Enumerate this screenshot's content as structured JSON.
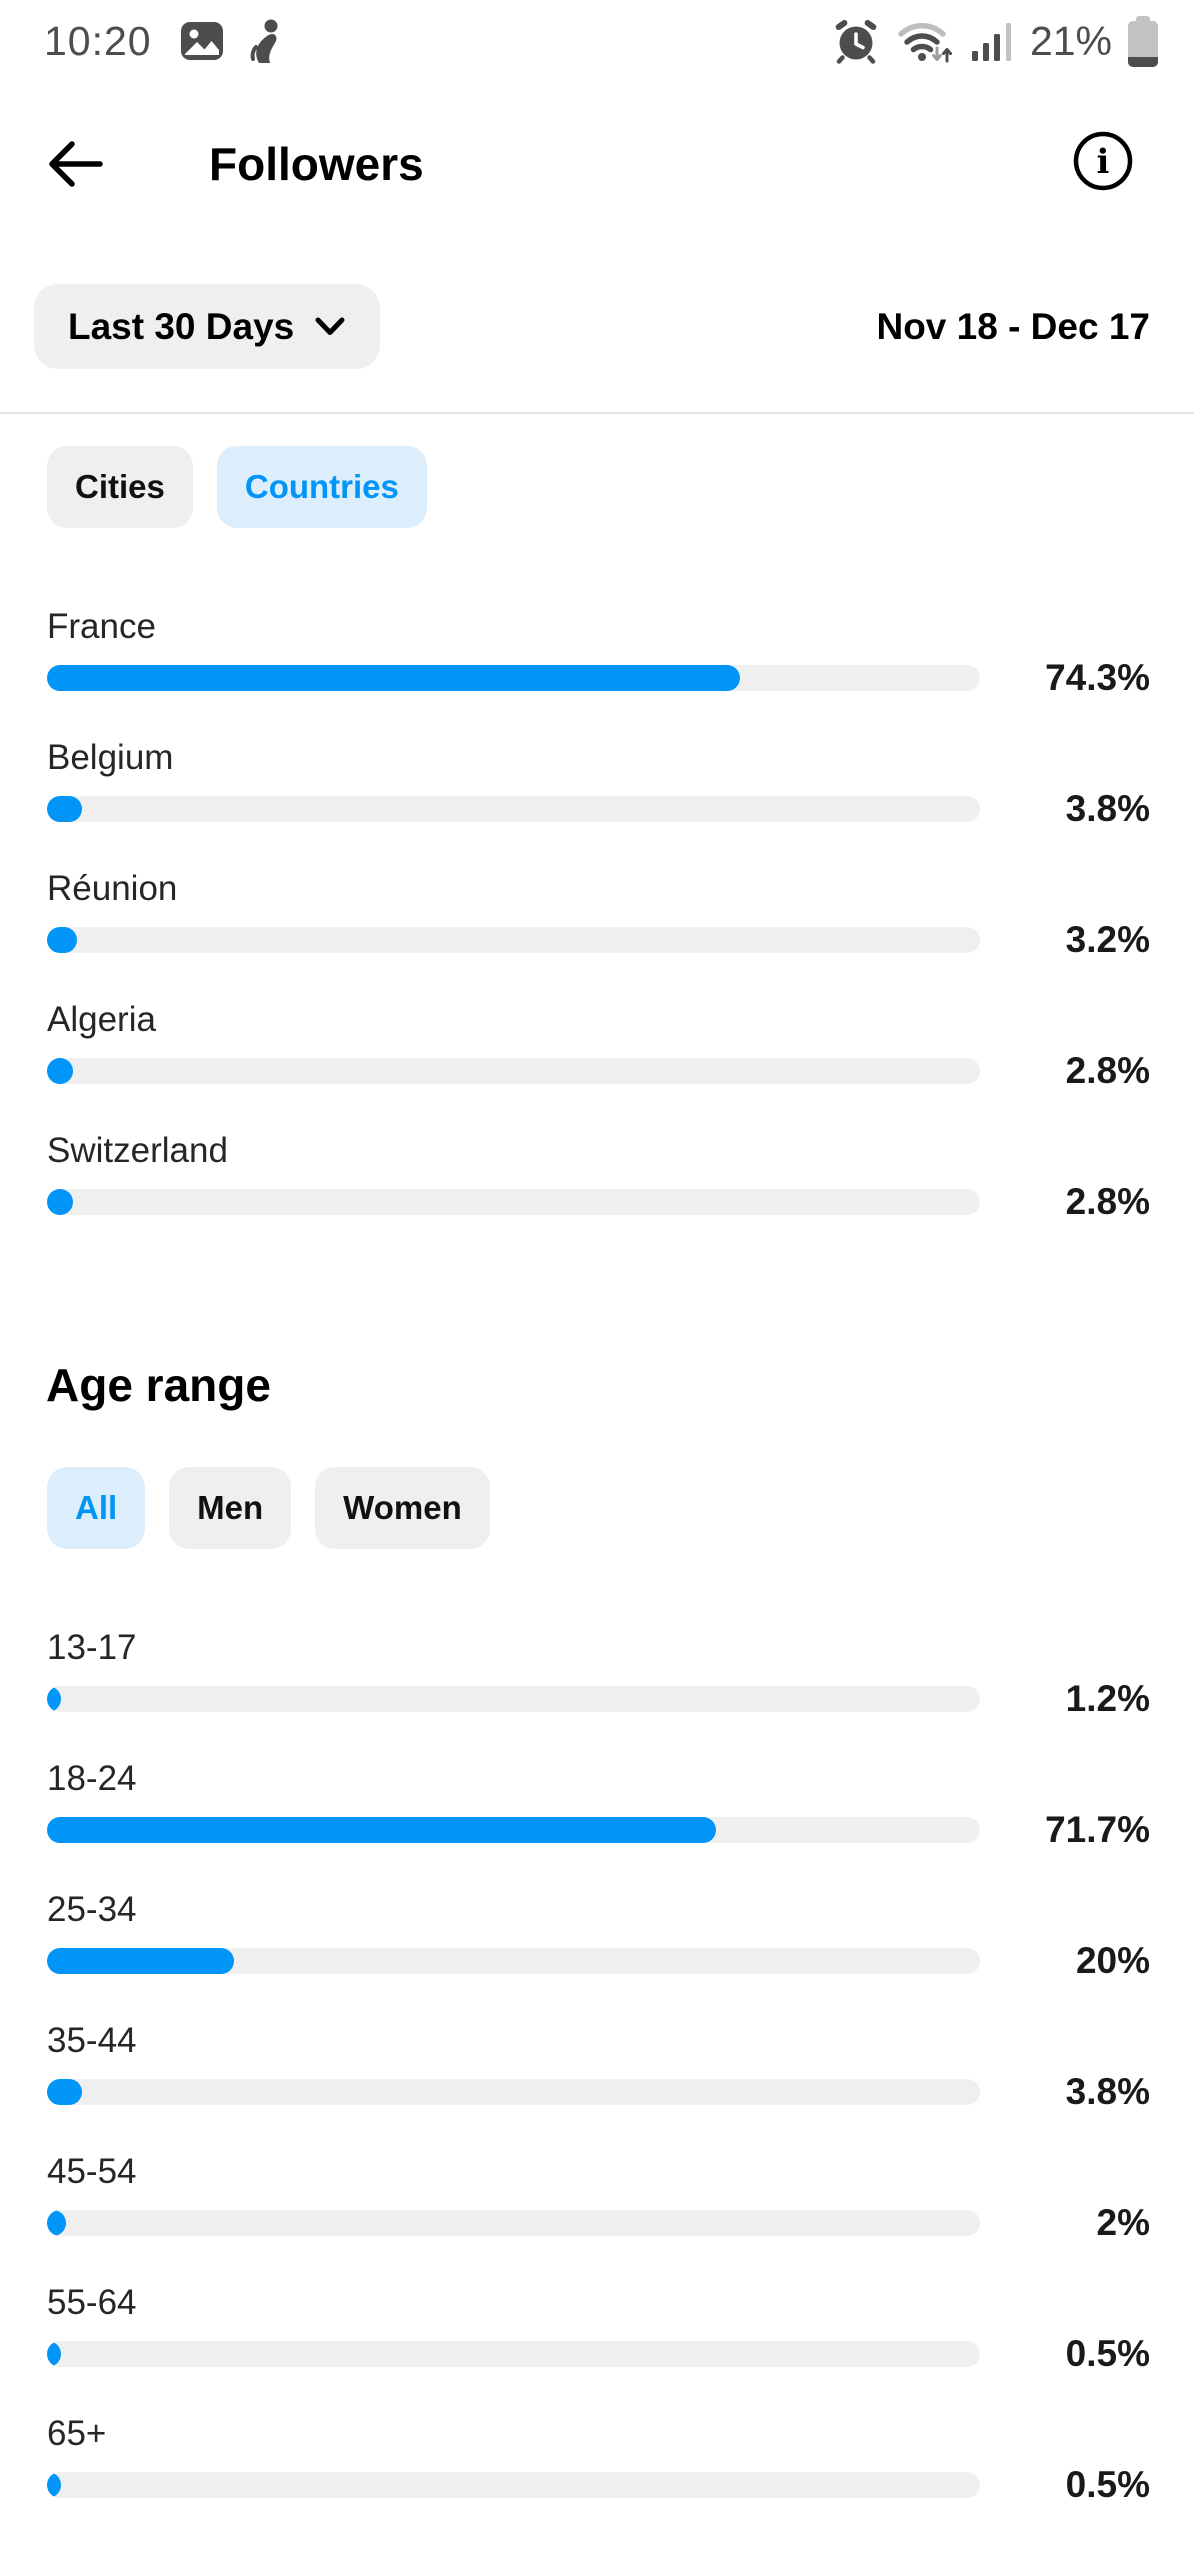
{
  "status_bar": {
    "time": "10:20",
    "battery_text": "21%",
    "battery_level_percent": 21,
    "left_icons": [
      "gallery-icon",
      "person-icon"
    ],
    "right_icons": [
      "alarm-icon",
      "wifi-icon",
      "signal-icon",
      "battery-icon"
    ]
  },
  "header": {
    "title": "Followers"
  },
  "filter": {
    "period_label": "Last 30 Days",
    "date_range": "Nov 18 - Dec 17"
  },
  "location_tabs": {
    "items": [
      {
        "label": "Cities",
        "selected": false
      },
      {
        "label": "Countries",
        "selected": true
      }
    ]
  },
  "countries": {
    "items": [
      {
        "label": "France",
        "percent": 74.3,
        "percent_label": "74.3%"
      },
      {
        "label": "Belgium",
        "percent": 3.8,
        "percent_label": "3.8%"
      },
      {
        "label": "Réunion",
        "percent": 3.2,
        "percent_label": "3.2%"
      },
      {
        "label": "Algeria",
        "percent": 2.8,
        "percent_label": "2.8%"
      },
      {
        "label": "Switzerland",
        "percent": 2.8,
        "percent_label": "2.8%"
      }
    ]
  },
  "age_section": {
    "title": "Age range",
    "tabs": [
      {
        "label": "All",
        "selected": true
      },
      {
        "label": "Men",
        "selected": false
      },
      {
        "label": "Women",
        "selected": false
      }
    ],
    "items": [
      {
        "label": "13-17",
        "percent": 1.2,
        "percent_label": "1.2%"
      },
      {
        "label": "18-24",
        "percent": 71.7,
        "percent_label": "71.7%"
      },
      {
        "label": "25-34",
        "percent": 20,
        "percent_label": "20%"
      },
      {
        "label": "35-44",
        "percent": 3.8,
        "percent_label": "3.8%"
      },
      {
        "label": "45-54",
        "percent": 2,
        "percent_label": "2%"
      },
      {
        "label": "55-64",
        "percent": 0.5,
        "percent_label": "0.5%"
      },
      {
        "label": "65+",
        "percent": 0.5,
        "percent_label": "0.5%"
      }
    ]
  },
  "chart_data": [
    {
      "type": "bar",
      "title": "Followers by country (Last 30 Days, Nov 18 - Dec 17)",
      "orientation": "horizontal",
      "categories": [
        "France",
        "Belgium",
        "Réunion",
        "Algeria",
        "Switzerland"
      ],
      "values": [
        74.3,
        3.8,
        3.2,
        2.8,
        2.8
      ],
      "unit": "%",
      "xlim": [
        0,
        100
      ],
      "grid": false,
      "bar_color": "#0095F6"
    },
    {
      "type": "bar",
      "title": "Age range (All)",
      "orientation": "horizontal",
      "categories": [
        "13-17",
        "18-24",
        "25-34",
        "35-44",
        "45-54",
        "55-64",
        "65+"
      ],
      "values": [
        1.2,
        71.7,
        20,
        3.8,
        2,
        0.5,
        0.5
      ],
      "unit": "%",
      "xlim": [
        0,
        100
      ],
      "grid": false,
      "bar_color": "#0095F6"
    }
  ],
  "colors": {
    "accent": "#0095F6",
    "selected_tab_bg": "#DCEEFB",
    "tab_bg": "#EFEFEF",
    "bar_track": "#EFEFEF",
    "divider": "#E3E3E3",
    "status_icon": "#4D4D4D"
  }
}
